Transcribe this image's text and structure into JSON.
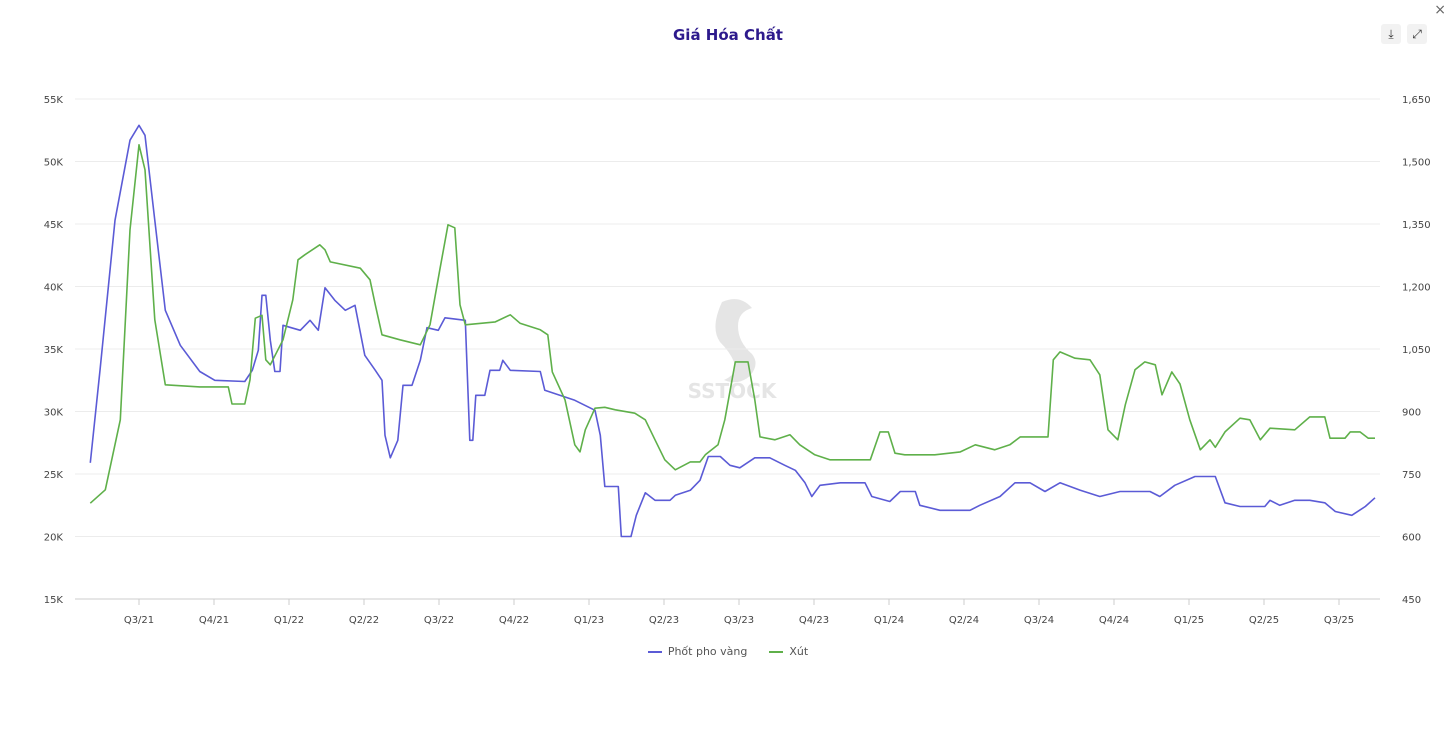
{
  "header": {
    "title": "Giá Hóa Chất",
    "close_icon": "×",
    "download_icon": "⤓",
    "expand_icon": "⤢"
  },
  "watermark": "SSTOCK",
  "chart_data": {
    "type": "line",
    "title": "Giá Hóa Chất",
    "x_unit": "quarters since start of Q3/21",
    "x_tick_labels": [
      "Q3/21",
      "Q4/21",
      "Q1/22",
      "Q2/22",
      "Q3/22",
      "Q4/22",
      "Q1/23",
      "Q2/23",
      "Q3/23",
      "Q4/23",
      "Q1/24",
      "Q2/24",
      "Q3/24",
      "Q4/24",
      "Q1/25",
      "Q2/25",
      "Q3/25"
    ],
    "y_left": {
      "ticks": [
        "15K",
        "20K",
        "25K",
        "30K",
        "35K",
        "40K",
        "45K",
        "50K",
        "55K"
      ],
      "range": [
        15,
        55
      ],
      "unit": "K"
    },
    "y_right": {
      "ticks": [
        "450",
        "600",
        "750",
        "900",
        "1,050",
        "1,200",
        "1,350",
        "1,500",
        "1,650"
      ],
      "range": [
        450,
        1650
      ]
    },
    "grid": true,
    "legend_position": "bottom",
    "series": [
      {
        "name": "Phốt pho vàng",
        "axis": "left",
        "color": "#5b5bd6",
        "points": [
          [
            -0.65,
            25.9
          ],
          [
            -0.52,
            33.3
          ],
          [
            -0.32,
            45.3
          ],
          [
            -0.12,
            51.7
          ],
          [
            0,
            52.9
          ],
          [
            0.08,
            52.1
          ],
          [
            0.21,
            45.3
          ],
          [
            0.35,
            38.1
          ],
          [
            0.55,
            35.3
          ],
          [
            0.81,
            33.2
          ],
          [
            1.01,
            32.5
          ],
          [
            1.41,
            32.4
          ],
          [
            1.51,
            33.3
          ],
          [
            1.59,
            34.9
          ],
          [
            1.64,
            39.3
          ],
          [
            1.69,
            39.3
          ],
          [
            1.75,
            35.7
          ],
          [
            1.81,
            33.2
          ],
          [
            1.88,
            33.2
          ],
          [
            1.92,
            36.9
          ],
          [
            2.15,
            36.5
          ],
          [
            2.28,
            37.3
          ],
          [
            2.39,
            36.5
          ],
          [
            2.48,
            39.9
          ],
          [
            2.61,
            38.9
          ],
          [
            2.75,
            38.1
          ],
          [
            2.88,
            38.5
          ],
          [
            3.01,
            34.5
          ],
          [
            3.15,
            33.3
          ],
          [
            3.24,
            32.5
          ],
          [
            3.28,
            28.1
          ],
          [
            3.35,
            26.3
          ],
          [
            3.45,
            27.7
          ],
          [
            3.52,
            32.1
          ],
          [
            3.64,
            32.1
          ],
          [
            3.75,
            34.1
          ],
          [
            3.84,
            36.7
          ],
          [
            3.99,
            36.5
          ],
          [
            4.08,
            37.5
          ],
          [
            4.35,
            37.3
          ],
          [
            4.41,
            27.7
          ],
          [
            4.45,
            27.7
          ],
          [
            4.49,
            31.3
          ],
          [
            4.61,
            31.3
          ],
          [
            4.68,
            33.3
          ],
          [
            4.81,
            33.3
          ],
          [
            4.85,
            34.1
          ],
          [
            4.95,
            33.3
          ],
          [
            5.35,
            33.2
          ],
          [
            5.41,
            31.7
          ],
          [
            5.61,
            31.3
          ],
          [
            5.81,
            30.9
          ],
          [
            6.08,
            30.1
          ],
          [
            6.15,
            28.1
          ],
          [
            6.21,
            24.0
          ],
          [
            6.39,
            24.0
          ],
          [
            6.43,
            20.0
          ],
          [
            6.56,
            20.0
          ],
          [
            6.63,
            21.7
          ],
          [
            6.75,
            23.5
          ],
          [
            6.88,
            22.9
          ],
          [
            7.08,
            22.9
          ],
          [
            7.15,
            23.3
          ],
          [
            7.35,
            23.7
          ],
          [
            7.48,
            24.5
          ],
          [
            7.59,
            26.4
          ],
          [
            7.75,
            26.4
          ],
          [
            7.88,
            25.7
          ],
          [
            8.01,
            25.5
          ],
          [
            8.21,
            26.3
          ],
          [
            8.41,
            26.3
          ],
          [
            8.61,
            25.7
          ],
          [
            8.75,
            25.3
          ],
          [
            8.88,
            24.3
          ],
          [
            8.97,
            23.2
          ],
          [
            9.08,
            24.1
          ],
          [
            9.35,
            24.3
          ],
          [
            9.68,
            24.3
          ],
          [
            9.77,
            23.2
          ],
          [
            10.01,
            22.8
          ],
          [
            10.15,
            23.6
          ],
          [
            10.35,
            23.6
          ],
          [
            10.41,
            22.5
          ],
          [
            10.68,
            22.1
          ],
          [
            11.08,
            22.1
          ],
          [
            11.21,
            22.5
          ],
          [
            11.48,
            23.2
          ],
          [
            11.68,
            24.3
          ],
          [
            11.88,
            24.3
          ],
          [
            12.08,
            23.6
          ],
          [
            12.28,
            24.3
          ],
          [
            12.55,
            23.7
          ],
          [
            12.81,
            23.2
          ],
          [
            13.08,
            23.6
          ],
          [
            13.48,
            23.6
          ],
          [
            13.61,
            23.2
          ],
          [
            13.81,
            24.1
          ],
          [
            14.08,
            24.8
          ],
          [
            14.35,
            24.8
          ],
          [
            14.48,
            22.7
          ],
          [
            14.68,
            22.4
          ],
          [
            15.01,
            22.4
          ],
          [
            15.08,
            22.9
          ],
          [
            15.21,
            22.5
          ],
          [
            15.41,
            22.9
          ],
          [
            15.61,
            22.9
          ],
          [
            15.81,
            22.7
          ],
          [
            15.95,
            22.0
          ],
          [
            16.17,
            21.7
          ],
          [
            16.35,
            22.4
          ],
          [
            16.48,
            23.1
          ]
        ]
      },
      {
        "name": "Xút",
        "axis": "right",
        "color": "#5fb04a",
        "points": [
          [
            -0.65,
            680
          ],
          [
            -0.45,
            712
          ],
          [
            -0.25,
            880
          ],
          [
            -0.12,
            1336
          ],
          [
            0,
            1540
          ],
          [
            0.08,
            1480
          ],
          [
            0.21,
            1120
          ],
          [
            0.35,
            964
          ],
          [
            0.81,
            959
          ],
          [
            1.19,
            959
          ],
          [
            1.24,
            918
          ],
          [
            1.41,
            918
          ],
          [
            1.48,
            976
          ],
          [
            1.55,
            1124
          ],
          [
            1.64,
            1131
          ],
          [
            1.69,
            1024
          ],
          [
            1.75,
            1012
          ],
          [
            1.92,
            1072
          ],
          [
            2.05,
            1168
          ],
          [
            2.12,
            1264
          ],
          [
            2.21,
            1276
          ],
          [
            2.41,
            1300
          ],
          [
            2.48,
            1288
          ],
          [
            2.55,
            1259
          ],
          [
            2.95,
            1244
          ],
          [
            3.08,
            1216
          ],
          [
            3.15,
            1156
          ],
          [
            3.24,
            1084
          ],
          [
            3.48,
            1072
          ],
          [
            3.75,
            1060
          ],
          [
            3.88,
            1108
          ],
          [
            4.01,
            1240
          ],
          [
            4.12,
            1348
          ],
          [
            4.21,
            1341
          ],
          [
            4.28,
            1156
          ],
          [
            4.35,
            1108
          ],
          [
            4.75,
            1115
          ],
          [
            4.95,
            1132
          ],
          [
            5.08,
            1112
          ],
          [
            5.35,
            1096
          ],
          [
            5.45,
            1084
          ],
          [
            5.51,
            995
          ],
          [
            5.68,
            928
          ],
          [
            5.81,
            820
          ],
          [
            5.88,
            803
          ],
          [
            5.95,
            856
          ],
          [
            6.08,
            908
          ],
          [
            6.21,
            910
          ],
          [
            6.35,
            904
          ],
          [
            6.61,
            896
          ],
          [
            6.75,
            880
          ],
          [
            6.88,
            832
          ],
          [
            7.01,
            784
          ],
          [
            7.15,
            760
          ],
          [
            7.35,
            779
          ],
          [
            7.48,
            779
          ],
          [
            7.55,
            796
          ],
          [
            7.72,
            820
          ],
          [
            7.81,
            880
          ],
          [
            7.95,
            1019
          ],
          [
            8.12,
            1019
          ],
          [
            8.21,
            928
          ],
          [
            8.28,
            839
          ],
          [
            8.48,
            832
          ],
          [
            8.68,
            844
          ],
          [
            8.81,
            820
          ],
          [
            9.01,
            796
          ],
          [
            9.21,
            784
          ],
          [
            9.75,
            784
          ],
          [
            9.88,
            851
          ],
          [
            9.99,
            851
          ],
          [
            10.08,
            800
          ],
          [
            10.21,
            796
          ],
          [
            10.61,
            796
          ],
          [
            10.95,
            803
          ],
          [
            11.15,
            820
          ],
          [
            11.41,
            808
          ],
          [
            11.61,
            820
          ],
          [
            11.75,
            839
          ],
          [
            12.12,
            839
          ],
          [
            12.19,
            1024
          ],
          [
            12.28,
            1043
          ],
          [
            12.48,
            1028
          ],
          [
            12.68,
            1024
          ],
          [
            12.81,
            988
          ],
          [
            12.92,
            856
          ],
          [
            13.05,
            832
          ],
          [
            13.15,
            916
          ],
          [
            13.28,
            1000
          ],
          [
            13.41,
            1019
          ],
          [
            13.55,
            1012
          ],
          [
            13.64,
            940
          ],
          [
            13.77,
            995
          ],
          [
            13.88,
            966
          ],
          [
            14.01,
            880
          ],
          [
            14.15,
            808
          ],
          [
            14.28,
            832
          ],
          [
            14.35,
            814
          ],
          [
            14.48,
            851
          ],
          [
            14.68,
            884
          ],
          [
            14.81,
            880
          ],
          [
            14.95,
            832
          ],
          [
            15.08,
            860
          ],
          [
            15.41,
            856
          ],
          [
            15.61,
            887
          ],
          [
            15.81,
            887
          ],
          [
            15.88,
            836
          ],
          [
            16.08,
            836
          ],
          [
            16.15,
            851
          ],
          [
            16.28,
            851
          ],
          [
            16.39,
            836
          ],
          [
            16.48,
            836
          ]
        ]
      }
    ]
  }
}
